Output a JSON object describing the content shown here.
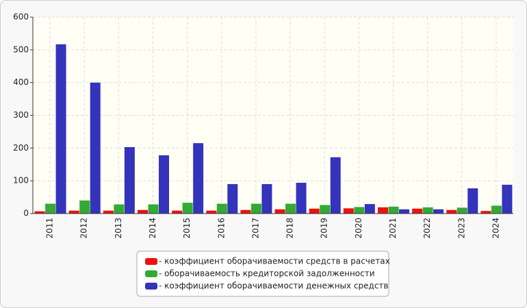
{
  "chart_data": {
    "type": "bar",
    "categories": [
      "2011",
      "2012",
      "2013",
      "2014",
      "2015",
      "2016",
      "2017",
      "2018",
      "2019",
      "2020",
      "2021",
      "2022",
      "2023",
      "2024"
    ],
    "series": [
      {
        "name": "- коэффициент оборачиваемости средств в расчетах",
        "color": "#ee1111",
        "values": [
          7,
          9,
          9,
          11,
          9,
          9,
          11,
          13,
          15,
          16,
          19,
          15,
          11,
          8
        ]
      },
      {
        "name": "- оборачиваемость кредиторской задолженности",
        "color": "#33aa33",
        "values": [
          30,
          40,
          28,
          28,
          33,
          30,
          30,
          30,
          26,
          20,
          21,
          19,
          18,
          24
        ]
      },
      {
        "name": "- коэффициент оборачиваемости денежных средств",
        "color": "#3333bb",
        "values": [
          517,
          400,
          203,
          178,
          215,
          90,
          90,
          94,
          172,
          29,
          13,
          13,
          77,
          88
        ]
      }
    ],
    "ylim": [
      0,
      600
    ],
    "yticks": [
      0,
      100,
      200,
      300,
      400,
      500,
      600
    ],
    "grid": true,
    "legend": "bottom"
  }
}
